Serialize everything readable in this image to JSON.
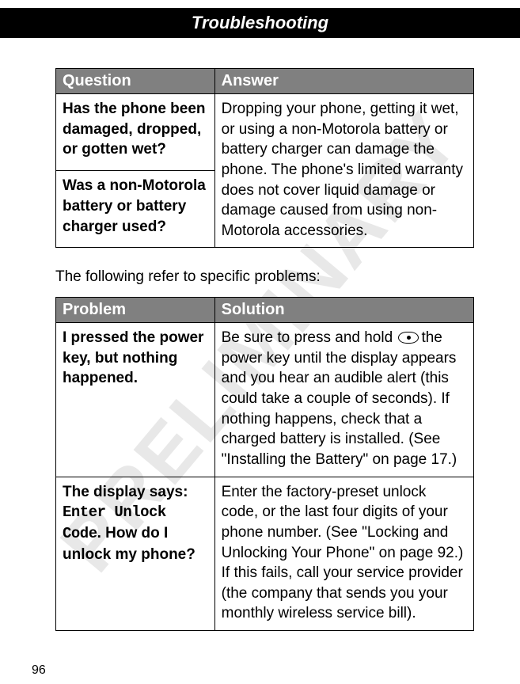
{
  "watermark": "PRELIMINARY",
  "header": {
    "title": "Troubleshooting"
  },
  "table1": {
    "headers": {
      "col1": "Question",
      "col2": "Answer"
    },
    "rows": {
      "q1": "Has the phone been damaged, dropped, or gotten wet?",
      "q2": "Was a non-Motorola battery or battery charger used?",
      "a_merged": "Dropping your phone, getting it wet, or using a non-Motorola battery or battery charger can damage the phone. The phone's limited warranty does not cover liquid damage or damage caused from using non-Motorola accessories."
    }
  },
  "between_text": "The following refer to specific problems:",
  "table2": {
    "headers": {
      "col1": "Problem",
      "col2": "Solution"
    },
    "rows": {
      "p1": "I pressed the power key, but nothing happened.",
      "s1_part1": "Be sure to press and hold ",
      "s1_part2": "the power key until the display appears and you hear an audible alert (this could take a couple of seconds). If nothing happens, check that a charged battery is installed. (See \"Installing the Battery\" on page 17.)",
      "p2_part1": "The display says: ",
      "p2_mono": "Enter Unlock Code",
      "p2_part3": ". How do I unlock my phone?",
      "s2": "Enter the factory-preset unlock code, or the last four digits of your phone number. (See \"Locking and Unlocking Your Phone\" on page 92.) If this fails, call your service provider (the company that sends you your monthly wireless service bill)."
    }
  },
  "page_number": "96",
  "colors": {
    "header_bg": "#000000",
    "header_text": "#ffffff",
    "th_bg": "#808080",
    "th_text": "#ffffff",
    "body_bg": "#ffffff",
    "body_text": "#000000",
    "watermark": "rgba(128,128,128,0.18)"
  }
}
